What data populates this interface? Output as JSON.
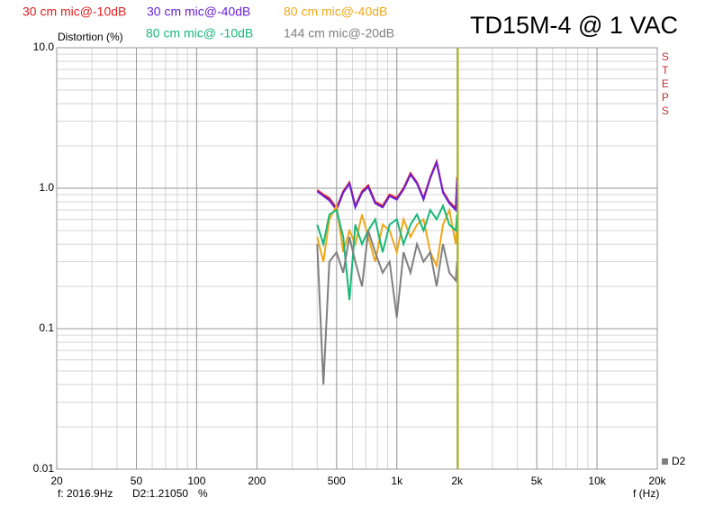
{
  "chart_data": {
    "type": "line",
    "title": "TD15M-4 @ 1 VAC",
    "y_label": "Distortion (%)",
    "x_label": "f (Hz)",
    "side_label": "STEPS",
    "trace_label": "D2",
    "status_freq": "f: 2016.9Hz",
    "status_value": "D2:1.21050",
    "status_unit": "%",
    "cursor_x": 2016.9,
    "cursor_color": "#a8b820",
    "log_x": true,
    "log_y": true,
    "grid": true,
    "xlim": [
      20,
      20000
    ],
    "ylim": [
      0.01,
      10
    ],
    "xticks": [
      20,
      50,
      100,
      200,
      500,
      {
        "value": 1000,
        "label": "1k"
      },
      {
        "value": 2000,
        "label": "2k"
      },
      {
        "value": 5000,
        "label": "5k"
      },
      {
        "value": 10000,
        "label": "10k"
      },
      {
        "value": 20000,
        "label": "20k"
      }
    ],
    "yticks": [
      {
        "value": 10,
        "label": "10.0"
      },
      {
        "value": 1,
        "label": "1.0"
      },
      0.1,
      0.01
    ],
    "x": [
      400,
      430,
      460,
      500,
      540,
      580,
      620,
      670,
      720,
      780,
      850,
      920,
      1000,
      1080,
      1170,
      1260,
      1360,
      1470,
      1580,
      1700,
      1830,
      1970,
      2000
    ],
    "series": [
      {
        "name": "30 cm mic@-10dB",
        "color": "#e02020",
        "values": [
          0.97,
          0.9,
          0.85,
          0.72,
          0.95,
          1.1,
          0.75,
          0.95,
          1.05,
          0.8,
          0.75,
          0.9,
          0.85,
          1.0,
          1.28,
          1.1,
          0.85,
          1.2,
          1.55,
          0.95,
          0.8,
          0.72,
          1.2
        ]
      },
      {
        "name": "30 cm mic@-40dB",
        "color": "#6a1fd8",
        "values": [
          0.95,
          0.88,
          0.82,
          0.7,
          0.93,
          1.08,
          0.73,
          0.93,
          1.02,
          0.78,
          0.73,
          0.88,
          0.83,
          0.98,
          1.25,
          1.08,
          0.83,
          1.18,
          1.52,
          0.93,
          0.78,
          0.7,
          1.15
        ]
      },
      {
        "name": "80 cm mic@-40dB",
        "color": "#f0a818",
        "values": [
          0.45,
          0.3,
          0.6,
          0.75,
          0.35,
          0.5,
          0.4,
          0.65,
          0.45,
          0.3,
          0.55,
          0.5,
          0.35,
          0.6,
          0.45,
          0.55,
          0.6,
          0.35,
          0.28,
          0.55,
          0.7,
          0.4,
          0.6
        ]
      },
      {
        "name": "80 cm mic@ -10dB",
        "color": "#18b878",
        "values": [
          0.55,
          0.4,
          0.65,
          0.7,
          0.45,
          0.16,
          0.55,
          0.4,
          0.5,
          0.6,
          0.35,
          0.55,
          0.6,
          0.4,
          0.55,
          0.65,
          0.5,
          0.7,
          0.6,
          0.75,
          0.55,
          0.5,
          0.65
        ]
      },
      {
        "name": "144 cm mic@-20dB",
        "color": "#808080",
        "values": [
          0.4,
          0.04,
          0.3,
          0.35,
          0.25,
          0.45,
          0.3,
          0.2,
          0.5,
          0.35,
          0.25,
          0.3,
          0.12,
          0.35,
          0.25,
          0.4,
          0.3,
          0.35,
          0.2,
          0.4,
          0.25,
          0.22,
          0.3
        ]
      }
    ]
  }
}
